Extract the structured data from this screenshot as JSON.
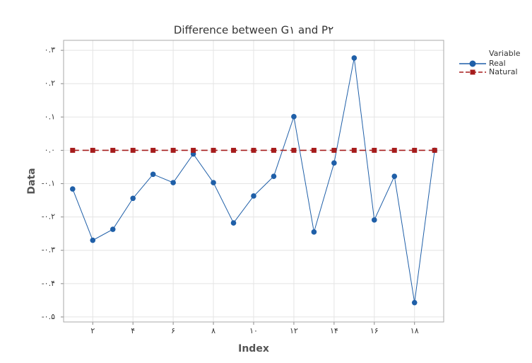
{
  "chart_data": {
    "type": "line",
    "title": "Difference between G۱ and P۲",
    "xlabel": "Index",
    "ylabel": "Data",
    "legend_title": "Variable",
    "legend": "right",
    "grid": true,
    "x": [
      1,
      2,
      3,
      4,
      5,
      6,
      7,
      8,
      9,
      10,
      11,
      12,
      13,
      14,
      15,
      16,
      17,
      18,
      19
    ],
    "xlim": [
      0.55,
      19.45
    ],
    "xticks": [
      {
        "value": 2,
        "label": "۲"
      },
      {
        "value": 4,
        "label": "۴"
      },
      {
        "value": 6,
        "label": "۶"
      },
      {
        "value": 8,
        "label": "۸"
      },
      {
        "value": 10,
        "label": "۱۰"
      },
      {
        "value": 12,
        "label": "۱۲"
      },
      {
        "value": 14,
        "label": "۱۴"
      },
      {
        "value": 16,
        "label": "۱۶"
      },
      {
        "value": 18,
        "label": "۱۸"
      }
    ],
    "ylim": [
      -0.515,
      0.33
    ],
    "yticks": [
      {
        "value": 0.3,
        "label": "۰.۳"
      },
      {
        "value": 0.2,
        "label": "۰.۲"
      },
      {
        "value": 0.1,
        "label": "۰.۱"
      },
      {
        "value": 0,
        "label": "۰.۰"
      },
      {
        "value": -0.1,
        "label": "-۰.۱"
      },
      {
        "value": -0.2,
        "label": "-۰.۲"
      },
      {
        "value": -0.3,
        "label": "-۰.۳"
      },
      {
        "value": -0.4,
        "label": "-۰.۴"
      },
      {
        "value": -0.5,
        "label": "-۰.۵"
      }
    ],
    "series": [
      {
        "name": "Real",
        "color": "#1f5fa8",
        "marker": "circle",
        "linestyle": "solid",
        "values": [
          -0.116,
          -0.27,
          -0.237,
          -0.144,
          -0.072,
          -0.097,
          -0.011,
          -0.097,
          -0.218,
          -0.137,
          -0.078,
          0.101,
          -0.245,
          -0.038,
          0.277,
          -0.209,
          -0.078,
          -0.457,
          0
        ]
      },
      {
        "name": "Natural",
        "color": "#a61c1c",
        "marker": "square",
        "linestyle": "dashed",
        "values": [
          0,
          0,
          0,
          0,
          0,
          0,
          0,
          0,
          0,
          0,
          0,
          0,
          0,
          0,
          0,
          0,
          0,
          0,
          0
        ]
      }
    ]
  }
}
